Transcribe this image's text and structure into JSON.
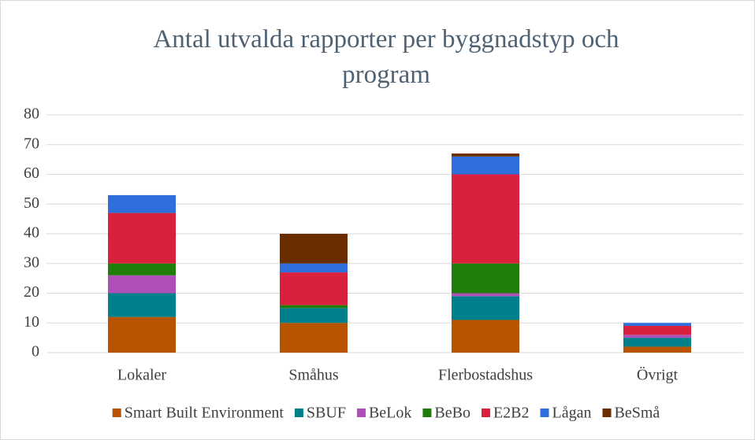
{
  "chart_data": {
    "type": "stacked_bar",
    "title": "Antal utvalda rapporter per byggnadstyp och program",
    "categories": [
      "Lokaler",
      "Småhus",
      "Flerbostadshus",
      "Övrigt"
    ],
    "series": [
      {
        "name": "Smart Built Environment",
        "color": "#b85400",
        "values": [
          12,
          10,
          11,
          2
        ]
      },
      {
        "name": "SBUF",
        "color": "#00808a",
        "values": [
          8,
          5,
          8,
          3
        ]
      },
      {
        "name": "BeLok",
        "color": "#b04fb8",
        "values": [
          6,
          0,
          1,
          1
        ]
      },
      {
        "name": "BeBo",
        "color": "#1f7d0a",
        "values": [
          4,
          1,
          10,
          0
        ]
      },
      {
        "name": "E2B2",
        "color": "#d9203c",
        "values": [
          17,
          11,
          30,
          3
        ]
      },
      {
        "name": "Lågan",
        "color": "#2f6fdb",
        "values": [
          6,
          3,
          6,
          1
        ]
      },
      {
        "name": "BeSmå",
        "color": "#6b2d00",
        "values": [
          0,
          10,
          1,
          0
        ]
      }
    ],
    "ylim": [
      0,
      80
    ],
    "yticks": [
      0,
      10,
      20,
      30,
      40,
      50,
      60,
      70,
      80
    ],
    "grid": true
  }
}
